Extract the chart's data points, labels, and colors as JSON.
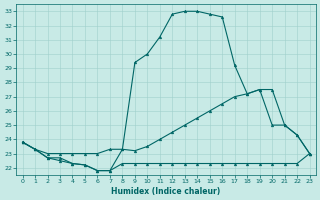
{
  "xlabel": "Humidex (Indice chaleur)",
  "bg_color": "#c8eae6",
  "line_color": "#006666",
  "grid_color": "#a0d0cc",
  "xlim": [
    -0.5,
    23.5
  ],
  "ylim": [
    21.5,
    33.5
  ],
  "xticks": [
    0,
    1,
    2,
    3,
    4,
    5,
    6,
    7,
    8,
    9,
    10,
    11,
    12,
    13,
    14,
    15,
    16,
    17,
    18,
    19,
    20,
    21,
    22,
    23
  ],
  "yticks": [
    22,
    23,
    24,
    25,
    26,
    27,
    28,
    29,
    30,
    31,
    32,
    33
  ],
  "line_top_x": [
    0,
    1,
    2,
    3,
    4,
    5,
    6,
    7,
    8,
    9,
    10,
    11,
    12,
    13,
    14,
    15,
    16,
    17,
    18,
    19,
    20,
    21,
    22,
    23
  ],
  "line_top_y": [
    23.8,
    23.3,
    22.7,
    22.7,
    22.3,
    22.2,
    21.8,
    21.8,
    23.3,
    29.4,
    30.0,
    31.2,
    32.8,
    33.0,
    33.0,
    32.8,
    32.6,
    29.2,
    27.2,
    27.5,
    25.0,
    25.0,
    24.3,
    23.0
  ],
  "line_mid_x": [
    0,
    1,
    2,
    3,
    4,
    5,
    6,
    7,
    8,
    9,
    10,
    11,
    12,
    13,
    14,
    15,
    16,
    17,
    18,
    19,
    20,
    21,
    22,
    23
  ],
  "line_mid_y": [
    23.8,
    23.3,
    23.0,
    23.0,
    23.0,
    23.0,
    23.0,
    23.3,
    23.3,
    23.2,
    23.5,
    24.0,
    24.5,
    25.0,
    25.5,
    26.0,
    26.5,
    27.0,
    27.2,
    27.5,
    27.5,
    25.0,
    24.3,
    23.0
  ],
  "line_bot_x": [
    0,
    1,
    2,
    3,
    4,
    5,
    6,
    7,
    8,
    9,
    10,
    11,
    12,
    13,
    14,
    15,
    16,
    17,
    18,
    19,
    20,
    21,
    22,
    23
  ],
  "line_bot_y": [
    23.8,
    23.3,
    22.7,
    22.5,
    22.3,
    22.2,
    21.8,
    21.8,
    22.3,
    22.3,
    22.3,
    22.3,
    22.3,
    22.3,
    22.3,
    22.3,
    22.3,
    22.3,
    22.3,
    22.3,
    22.3,
    22.3,
    22.3,
    23.0
  ]
}
